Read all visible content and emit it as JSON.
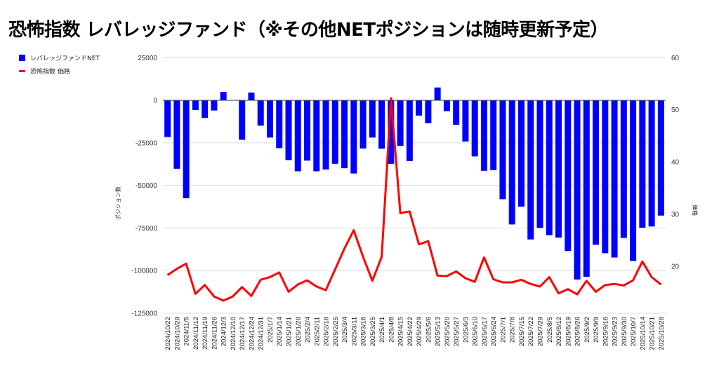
{
  "chart_data": {
    "type": "bar+line",
    "title": "恐怖指数 レバレッジファンド（※その他NETポジションは随時更新予定）",
    "ylabel_left": "ポジション数",
    "ylabel_right": "価格",
    "ylim_left": [
      -125000,
      25000
    ],
    "yticks_left": [
      "25000",
      "0",
      "-25000",
      "-50000",
      "-75000",
      "-100000",
      "-125000"
    ],
    "ylim_right": [
      10,
      60
    ],
    "yticks_right": [
      "60",
      "50",
      "40",
      "30",
      "20"
    ],
    "grid": true,
    "legend_position": "top-left",
    "categories": [
      "2024/10/22",
      "2024/10/29",
      "2024/11/5",
      "2024/11/12",
      "2024/11/19",
      "2024/11/26",
      "2024/12/3",
      "2024/12/10",
      "2024/12/17",
      "2024/12/24",
      "2024/12/31",
      "2025/1/7",
      "2025/1/14",
      "2025/1/21",
      "2025/1/28",
      "2025/2/4",
      "2025/2/11",
      "2025/2/18",
      "2025/2/25",
      "2025/3/4",
      "2025/3/11",
      "2025/3/18",
      "2025/3/25",
      "2025/4/1",
      "2025/4/8",
      "2025/4/15",
      "2025/4/22",
      "2025/4/29",
      "2025/5/6",
      "2025/5/13",
      "2025/5/20",
      "2025/5/27",
      "2025/6/3",
      "2025/6/10",
      "2025/6/17",
      "2025/6/24",
      "2025/7/1",
      "2025/7/8",
      "2025/7/15",
      "2025/7/22",
      "2025/7/29",
      "2025/8/5",
      "2025/8/12",
      "2025/8/19",
      "2025/8/26",
      "2025/9/2",
      "2025/9/9",
      "2025/9/16",
      "2025/9/23",
      "2025/9/30",
      "2025/10/7",
      "2025/10/14",
      "2025/10/21",
      "2025/10/28"
    ],
    "series": [
      {
        "name": "レバレッジファンドNET",
        "type": "bar",
        "axis": "left",
        "color": "#0000ff",
        "values": [
          -21600,
          -40200,
          -57500,
          -5700,
          -10400,
          -6000,
          4900,
          0,
          -23200,
          4500,
          -14900,
          -21900,
          -28100,
          -35100,
          -41700,
          -35400,
          -41700,
          -40600,
          -37300,
          -39900,
          -43000,
          -28300,
          -21900,
          -28400,
          -37300,
          -26800,
          -35700,
          -9000,
          -13500,
          7500,
          -6400,
          -14400,
          -24200,
          -33000,
          -41400,
          -41000,
          -58100,
          -72900,
          -62400,
          -81700,
          -74900,
          -79200,
          -80600,
          -88500,
          -105200,
          -103600,
          -84800,
          -89800,
          -92300,
          -80800,
          -94300,
          -74800,
          -74100,
          -67700
        ]
      },
      {
        "name": "恐怖指数 価格",
        "type": "line",
        "axis": "right",
        "color": "#ff0000",
        "values": [
          18.3,
          19.5,
          20.5,
          14.7,
          16.4,
          14.2,
          13.4,
          14.2,
          16.0,
          14.3,
          17.4,
          17.9,
          18.8,
          15.1,
          16.5,
          17.3,
          16.1,
          15.4,
          19.4,
          23.4,
          26.9,
          21.8,
          17.2,
          21.8,
          52.2,
          30.2,
          30.5,
          24.2,
          24.8,
          18.2,
          18.1,
          19.0,
          17.7,
          17.0,
          21.7,
          17.5,
          16.9,
          16.9,
          17.4,
          16.6,
          16.1,
          17.9,
          14.8,
          15.6,
          14.6,
          17.2,
          15.1,
          16.4,
          16.6,
          16.3,
          17.3,
          20.9,
          17.9,
          16.5
        ]
      }
    ]
  }
}
